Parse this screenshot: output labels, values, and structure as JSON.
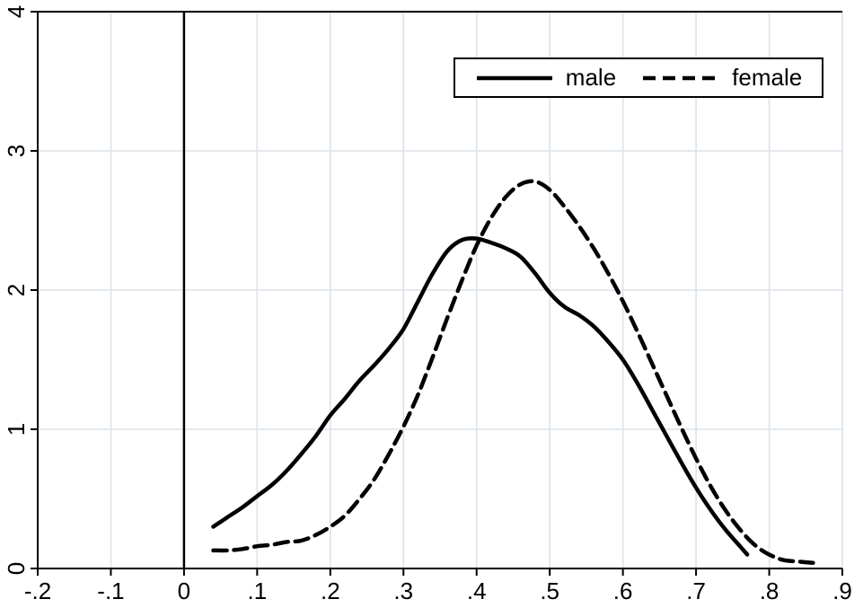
{
  "chart_data": {
    "type": "line",
    "title": "",
    "xlabel": "",
    "ylabel": "",
    "xlim": [
      -0.2,
      0.9
    ],
    "ylim": [
      0,
      4
    ],
    "x_ticks": [
      -0.2,
      -0.1,
      0,
      0.1,
      0.2,
      0.3,
      0.4,
      0.5,
      0.6,
      0.7,
      0.8,
      0.9
    ],
    "x_tick_labels": [
      "-.2",
      "-.1",
      "0",
      ".1",
      ".2",
      ".3",
      ".4",
      ".5",
      ".6",
      ".7",
      ".8",
      ".9"
    ],
    "y_ticks": [
      0,
      1,
      2,
      3,
      4
    ],
    "y_tick_labels": [
      "0",
      "1",
      "2",
      "3",
      "4"
    ],
    "grid": true,
    "vline_x": 0,
    "legend_position": "top-right-inside",
    "colors": {
      "line": "#000000",
      "grid": "#dbe2e9",
      "axis": "#000000",
      "background": "#ffffff"
    },
    "series": [
      {
        "name": "male",
        "dash": "solid",
        "x": [
          0.04,
          0.06,
          0.08,
          0.1,
          0.12,
          0.14,
          0.16,
          0.18,
          0.2,
          0.22,
          0.24,
          0.26,
          0.28,
          0.3,
          0.32,
          0.34,
          0.36,
          0.38,
          0.4,
          0.42,
          0.44,
          0.46,
          0.48,
          0.5,
          0.52,
          0.54,
          0.56,
          0.58,
          0.6,
          0.62,
          0.64,
          0.66,
          0.68,
          0.7,
          0.72,
          0.74,
          0.76,
          0.77
        ],
        "y": [
          0.3,
          0.37,
          0.44,
          0.52,
          0.6,
          0.7,
          0.82,
          0.95,
          1.1,
          1.22,
          1.35,
          1.46,
          1.58,
          1.72,
          1.92,
          2.12,
          2.28,
          2.36,
          2.37,
          2.34,
          2.3,
          2.24,
          2.12,
          1.98,
          1.88,
          1.82,
          1.74,
          1.63,
          1.5,
          1.33,
          1.14,
          0.95,
          0.76,
          0.58,
          0.42,
          0.28,
          0.16,
          0.1
        ]
      },
      {
        "name": "female",
        "dash": "dashed",
        "x": [
          0.04,
          0.06,
          0.08,
          0.1,
          0.12,
          0.14,
          0.16,
          0.18,
          0.2,
          0.22,
          0.24,
          0.26,
          0.28,
          0.3,
          0.32,
          0.34,
          0.36,
          0.38,
          0.4,
          0.42,
          0.44,
          0.46,
          0.48,
          0.5,
          0.52,
          0.54,
          0.56,
          0.58,
          0.6,
          0.62,
          0.64,
          0.66,
          0.68,
          0.7,
          0.72,
          0.74,
          0.76,
          0.78,
          0.8,
          0.82,
          0.84,
          0.86
        ],
        "y": [
          0.13,
          0.13,
          0.14,
          0.16,
          0.17,
          0.19,
          0.2,
          0.24,
          0.3,
          0.38,
          0.5,
          0.64,
          0.82,
          1.02,
          1.25,
          1.52,
          1.8,
          2.07,
          2.32,
          2.52,
          2.67,
          2.76,
          2.78,
          2.72,
          2.6,
          2.46,
          2.3,
          2.12,
          1.92,
          1.7,
          1.47,
          1.24,
          1.01,
          0.79,
          0.59,
          0.42,
          0.28,
          0.17,
          0.1,
          0.06,
          0.05,
          0.04
        ]
      }
    ]
  }
}
